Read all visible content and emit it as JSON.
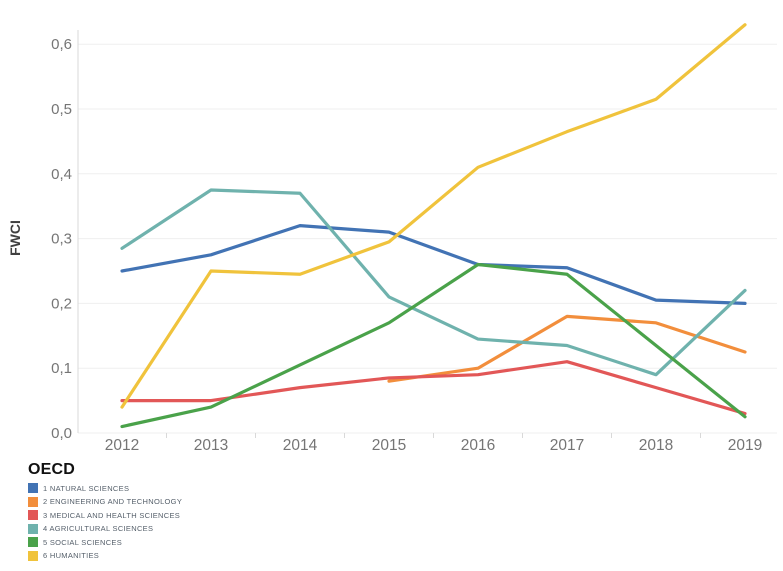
{
  "chart_data": {
    "type": "line",
    "title": "",
    "ylabel": "FWCI",
    "xlabel": "",
    "x": [
      2012,
      2013,
      2014,
      2015,
      2016,
      2017,
      2018,
      2019
    ],
    "x_tick_labels": [
      "2012",
      "2013",
      "2014",
      "2015",
      "2016",
      "2017",
      "2018",
      "2019"
    ],
    "y_ticks": [
      0.0,
      0.1,
      0.2,
      0.3,
      0.4,
      0.5,
      0.6
    ],
    "y_tick_labels": [
      "0,0",
      "0,1",
      "0,2",
      "0,3",
      "0,4",
      "0,5",
      "0,6"
    ],
    "ylim": [
      0,
      0.65
    ],
    "grid": "horizontal",
    "legend_title": "OECD",
    "legend_position": "bottom-left",
    "series": [
      {
        "name": "1 NATURAL SCIENCES",
        "color": "#4273b4",
        "values": [
          0.25,
          0.275,
          0.32,
          0.31,
          0.26,
          0.255,
          0.205,
          0.2
        ]
      },
      {
        "name": "2 ENGINEERING AND TECHNOLOGY",
        "color": "#f28e3c",
        "values": [
          null,
          null,
          null,
          0.08,
          0.1,
          0.18,
          0.17,
          0.125
        ]
      },
      {
        "name": "3 MEDICAL AND HEALTH SCIENCES",
        "color": "#e25757",
        "values": [
          0.05,
          0.05,
          0.07,
          0.085,
          0.09,
          0.11,
          0.07,
          0.03
        ]
      },
      {
        "name": "4 AGRICULTURAL SCIENCES",
        "color": "#6fb2ad",
        "values": [
          0.285,
          0.375,
          0.37,
          0.21,
          0.145,
          0.135,
          0.09,
          0.22
        ]
      },
      {
        "name": "5 SOCIAL SCIENCES",
        "color": "#4aa24a",
        "values": [
          0.01,
          0.04,
          0.105,
          0.17,
          0.26,
          0.245,
          0.135,
          0.025
        ]
      },
      {
        "name": "6 HUMANITIES",
        "color": "#f0c33c",
        "values": [
          0.04,
          0.25,
          0.245,
          0.295,
          0.41,
          0.465,
          0.515,
          0.63
        ]
      }
    ],
    "colors": {
      "axis_text": "#757575",
      "axis_line": "#d9d9d9",
      "gridline": "#efefef",
      "y_axis_title_text": "#3f3f3f"
    }
  }
}
